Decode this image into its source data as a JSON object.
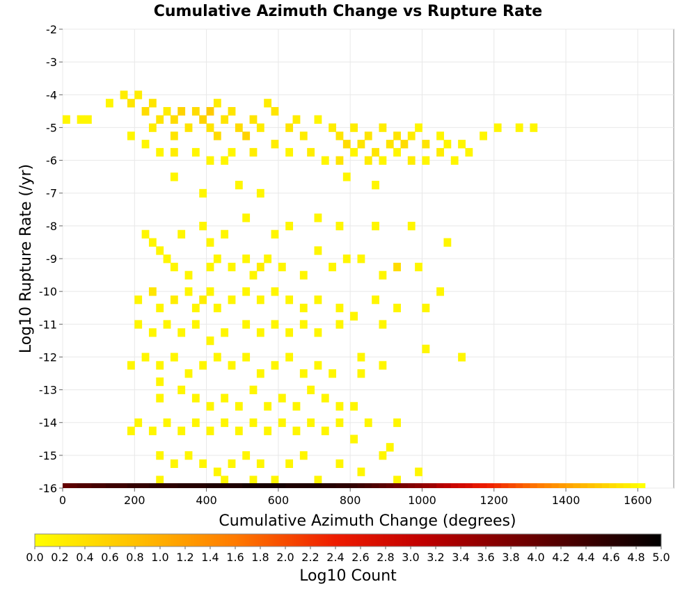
{
  "chart_data": {
    "type": "heatmap",
    "title": "Cumulative Azimuth Change vs Rupture Rate",
    "xlabel": "Cumulative Azimuth Change (degrees)",
    "ylabel": "Log10 Rupture Rate (/yr)",
    "xlim": [
      0,
      1700
    ],
    "ylim": [
      -16,
      -2
    ],
    "xticks": [
      "0",
      "200",
      "400",
      "600",
      "800",
      "1000",
      "1200",
      "1400",
      "1600"
    ],
    "yticks": [
      "-2",
      "-3",
      "-4",
      "-5",
      "-6",
      "-7",
      "-8",
      "-9",
      "-10",
      "-11",
      "-12",
      "-13",
      "-14",
      "-15",
      "-16"
    ],
    "grid": true,
    "bin": {
      "dx": 20,
      "dy": 0.25
    },
    "colorbar": {
      "label": "Log10 Count",
      "range": [
        0.0,
        5.0
      ],
      "ticks": [
        "0.0",
        "0.2",
        "0.4",
        "0.6",
        "0.8",
        "1.0",
        "1.2",
        "1.4",
        "1.6",
        "1.8",
        "2.0",
        "2.2",
        "2.4",
        "2.6",
        "2.8",
        "3.0",
        "3.2",
        "3.4",
        "3.6",
        "3.8",
        "4.0",
        "4.2",
        "4.4",
        "4.6",
        "4.8",
        "5.0"
      ],
      "stops": [
        "#ffff00",
        "#ffc000",
        "#ff7a00",
        "#ee1c00",
        "#c00000",
        "#7a0000",
        "#330000",
        "#000000"
      ]
    },
    "bottom_row": {
      "y": -16,
      "x_start": 0,
      "x_end": 1620,
      "log_counts": [
        3.8,
        3.9,
        4.0,
        4.0,
        4.1,
        4.1,
        4.2,
        4.2,
        4.2,
        4.3,
        4.3,
        4.3,
        4.4,
        4.4,
        4.4,
        4.4,
        4.5,
        4.5,
        4.5,
        4.5,
        4.6,
        4.6,
        4.6,
        4.6,
        4.6,
        4.7,
        4.7,
        4.7,
        4.7,
        4.7,
        4.7,
        4.6,
        4.6,
        4.6,
        4.6,
        4.6,
        4.5,
        4.5,
        4.4,
        4.4,
        4.3,
        4.2,
        4.1,
        4.0,
        3.9,
        3.8,
        3.7,
        3.6,
        3.5,
        3.4,
        3.3,
        3.2,
        3.0,
        2.9,
        2.7,
        2.6,
        2.5,
        2.3,
        2.2,
        2.1,
        2.0,
        1.9,
        1.8,
        1.7,
        1.6,
        1.5,
        1.4,
        1.3,
        1.2,
        1.1,
        1.0,
        0.9,
        0.8,
        0.7,
        0.6,
        0.5,
        0.4,
        0.3,
        0.2,
        0.1,
        0.0
      ]
    },
    "points": [
      [
        0,
        -4.75,
        0.1
      ],
      [
        40,
        -4.75,
        0.1
      ],
      [
        60,
        -4.75,
        0.1
      ],
      [
        120,
        -4.25,
        0.1
      ],
      [
        160,
        -4.0,
        0.2
      ],
      [
        180,
        -4.25,
        0.3
      ],
      [
        200,
        -4.0,
        0.2
      ],
      [
        220,
        -4.5,
        0.4
      ],
      [
        240,
        -4.25,
        0.3
      ],
      [
        240,
        -5.0,
        0.2
      ],
      [
        260,
        -4.75,
        0.3
      ],
      [
        280,
        -4.5,
        0.2
      ],
      [
        300,
        -4.75,
        0.4
      ],
      [
        300,
        -5.25,
        0.3
      ],
      [
        320,
        -4.5,
        0.5
      ],
      [
        340,
        -5.0,
        0.3
      ],
      [
        360,
        -4.5,
        0.4
      ],
      [
        380,
        -4.75,
        0.5
      ],
      [
        400,
        -4.5,
        0.6
      ],
      [
        400,
        -5.0,
        0.3
      ],
      [
        420,
        -4.25,
        0.2
      ],
      [
        420,
        -5.25,
        0.4
      ],
      [
        440,
        -4.75,
        0.3
      ],
      [
        460,
        -4.5,
        0.3
      ],
      [
        480,
        -5.0,
        0.4
      ],
      [
        500,
        -5.25,
        0.5
      ],
      [
        520,
        -4.75,
        0.3
      ],
      [
        540,
        -5.0,
        0.2
      ],
      [
        560,
        -4.25,
        0.2
      ],
      [
        580,
        -4.5,
        0.3
      ],
      [
        620,
        -5.0,
        0.3
      ],
      [
        640,
        -4.75,
        0.2
      ],
      [
        660,
        -5.25,
        0.2
      ],
      [
        700,
        -4.75,
        0.1
      ],
      [
        740,
        -5.0,
        0.2
      ],
      [
        760,
        -5.25,
        0.3
      ],
      [
        780,
        -5.5,
        0.4
      ],
      [
        800,
        -5.0,
        0.2
      ],
      [
        820,
        -5.5,
        0.3
      ],
      [
        840,
        -5.25,
        0.3
      ],
      [
        860,
        -5.75,
        0.3
      ],
      [
        880,
        -5.0,
        0.2
      ],
      [
        900,
        -5.5,
        0.3
      ],
      [
        920,
        -5.25,
        0.3
      ],
      [
        940,
        -5.5,
        0.4
      ],
      [
        960,
        -5.25,
        0.2
      ],
      [
        980,
        -5.0,
        0.1
      ],
      [
        1000,
        -5.5,
        0.3
      ],
      [
        1040,
        -5.25,
        0.1
      ],
      [
        1060,
        -5.5,
        0.1
      ],
      [
        1100,
        -5.5,
        0.1
      ],
      [
        1120,
        -5.75,
        0.1
      ],
      [
        1160,
        -5.25,
        0.1
      ],
      [
        1200,
        -5.0,
        0.1
      ],
      [
        1260,
        -5.0,
        0.1
      ],
      [
        1300,
        -5.0,
        0.1
      ],
      [
        180,
        -5.25,
        0.1
      ],
      [
        220,
        -5.5,
        0.1
      ],
      [
        260,
        -5.75,
        0.1
      ],
      [
        300,
        -5.75,
        0.2
      ],
      [
        360,
        -5.75,
        0.1
      ],
      [
        400,
        -6.0,
        0.1
      ],
      [
        440,
        -6.0,
        0.1
      ],
      [
        460,
        -5.75,
        0.1
      ],
      [
        520,
        -5.75,
        0.2
      ],
      [
        580,
        -5.5,
        0.2
      ],
      [
        620,
        -5.75,
        0.1
      ],
      [
        680,
        -5.75,
        0.2
      ],
      [
        720,
        -6.0,
        0.1
      ],
      [
        760,
        -6.0,
        0.3
      ],
      [
        800,
        -5.75,
        0.1
      ],
      [
        840,
        -6.0,
        0.2
      ],
      [
        880,
        -6.0,
        0.1
      ],
      [
        920,
        -5.75,
        0.1
      ],
      [
        960,
        -6.0,
        0.2
      ],
      [
        1000,
        -6.0,
        0.1
      ],
      [
        1040,
        -5.75,
        0.2
      ],
      [
        1080,
        -6.0,
        0.1
      ],
      [
        300,
        -6.5,
        0.1
      ],
      [
        480,
        -6.75,
        0.1
      ],
      [
        540,
        -7.0,
        0.1
      ],
      [
        780,
        -6.5,
        0.1
      ],
      [
        860,
        -6.75,
        0.1
      ],
      [
        380,
        -7.0,
        0.1
      ],
      [
        380,
        -8.0,
        0.1
      ],
      [
        500,
        -7.75,
        0.1
      ],
      [
        580,
        -8.25,
        0.1
      ],
      [
        620,
        -8.0,
        0.1
      ],
      [
        700,
        -7.75,
        0.1
      ],
      [
        760,
        -8.0,
        0.1
      ],
      [
        860,
        -8.0,
        0.1
      ],
      [
        960,
        -8.0,
        0.1
      ],
      [
        220,
        -8.25,
        0.1
      ],
      [
        320,
        -8.25,
        0.1
      ],
      [
        400,
        -8.5,
        0.1
      ],
      [
        440,
        -8.25,
        0.1
      ],
      [
        240,
        -8.5,
        0.1
      ],
      [
        260,
        -8.75,
        0.1
      ],
      [
        280,
        -9.0,
        0.1
      ],
      [
        300,
        -9.25,
        0.1
      ],
      [
        340,
        -9.5,
        0.1
      ],
      [
        400,
        -9.25,
        0.1
      ],
      [
        420,
        -9.0,
        0.1
      ],
      [
        460,
        -9.25,
        0.1
      ],
      [
        500,
        -9.0,
        0.1
      ],
      [
        520,
        -9.5,
        0.1
      ],
      [
        540,
        -9.25,
        0.2
      ],
      [
        560,
        -9.0,
        0.1
      ],
      [
        600,
        -9.25,
        0.1
      ],
      [
        660,
        -9.5,
        0.1
      ],
      [
        700,
        -8.75,
        0.1
      ],
      [
        740,
        -9.25,
        0.1
      ],
      [
        780,
        -9.0,
        0.1
      ],
      [
        820,
        -9.0,
        0.1
      ],
      [
        880,
        -9.5,
        0.1
      ],
      [
        920,
        -9.25,
        0.4
      ],
      [
        980,
        -9.25,
        0.1
      ],
      [
        1060,
        -8.5,
        0.1
      ],
      [
        200,
        -10.25,
        0.1
      ],
      [
        240,
        -10.0,
        0.3
      ],
      [
        260,
        -10.5,
        0.1
      ],
      [
        300,
        -10.25,
        0.2
      ],
      [
        340,
        -10.0,
        0.1
      ],
      [
        360,
        -10.5,
        0.1
      ],
      [
        380,
        -10.25,
        0.2
      ],
      [
        400,
        -10.0,
        0.1
      ],
      [
        420,
        -10.5,
        0.1
      ],
      [
        460,
        -10.25,
        0.1
      ],
      [
        500,
        -10.0,
        0.1
      ],
      [
        540,
        -10.25,
        0.1
      ],
      [
        580,
        -10.0,
        0.1
      ],
      [
        620,
        -10.25,
        0.1
      ],
      [
        660,
        -10.5,
        0.1
      ],
      [
        700,
        -10.25,
        0.1
      ],
      [
        760,
        -10.5,
        0.1
      ],
      [
        800,
        -10.75,
        0.1
      ],
      [
        860,
        -10.25,
        0.1
      ],
      [
        920,
        -10.5,
        0.1
      ],
      [
        1040,
        -10.0,
        0.1
      ],
      [
        1000,
        -10.5,
        0.1
      ],
      [
        200,
        -11.0,
        0.1
      ],
      [
        240,
        -11.25,
        0.1
      ],
      [
        280,
        -11.0,
        0.1
      ],
      [
        320,
        -11.25,
        0.1
      ],
      [
        360,
        -11.0,
        0.1
      ],
      [
        400,
        -11.5,
        0.1
      ],
      [
        440,
        -11.25,
        0.1
      ],
      [
        500,
        -11.0,
        0.1
      ],
      [
        540,
        -11.25,
        0.1
      ],
      [
        580,
        -11.0,
        0.1
      ],
      [
        620,
        -11.25,
        0.1
      ],
      [
        660,
        -11.0,
        0.1
      ],
      [
        700,
        -11.25,
        0.1
      ],
      [
        760,
        -11.0,
        0.1
      ],
      [
        800,
        -10.75,
        0.1
      ],
      [
        880,
        -11.0,
        0.1
      ],
      [
        1000,
        -11.75,
        0.1
      ],
      [
        1100,
        -12.0,
        0.1
      ],
      [
        180,
        -12.25,
        0.1
      ],
      [
        220,
        -12.0,
        0.1
      ],
      [
        260,
        -12.25,
        0.1
      ],
      [
        300,
        -12.0,
        0.1
      ],
      [
        340,
        -12.5,
        0.1
      ],
      [
        380,
        -12.25,
        0.1
      ],
      [
        420,
        -12.0,
        0.1
      ],
      [
        460,
        -12.25,
        0.1
      ],
      [
        500,
        -12.0,
        0.1
      ],
      [
        540,
        -12.5,
        0.1
      ],
      [
        580,
        -12.25,
        0.1
      ],
      [
        620,
        -12.0,
        0.1
      ],
      [
        660,
        -12.5,
        0.1
      ],
      [
        700,
        -12.25,
        0.1
      ],
      [
        740,
        -12.5,
        0.1
      ],
      [
        820,
        -12.0,
        0.1
      ],
      [
        820,
        -12.5,
        0.1
      ],
      [
        880,
        -12.25,
        0.1
      ],
      [
        260,
        -12.75,
        0.1
      ],
      [
        260,
        -13.25,
        0.1
      ],
      [
        320,
        -13.0,
        0.1
      ],
      [
        360,
        -13.25,
        0.1
      ],
      [
        400,
        -13.5,
        0.1
      ],
      [
        440,
        -13.25,
        0.1
      ],
      [
        480,
        -13.5,
        0.1
      ],
      [
        520,
        -13.0,
        0.1
      ],
      [
        560,
        -13.5,
        0.1
      ],
      [
        600,
        -13.25,
        0.1
      ],
      [
        640,
        -13.5,
        0.1
      ],
      [
        680,
        -13.0,
        0.1
      ],
      [
        720,
        -13.25,
        0.1
      ],
      [
        760,
        -13.5,
        0.1
      ],
      [
        800,
        -13.5,
        0.1
      ],
      [
        200,
        -14.0,
        0.1
      ],
      [
        180,
        -14.25,
        0.1
      ],
      [
        240,
        -14.25,
        0.1
      ],
      [
        280,
        -14.0,
        0.1
      ],
      [
        320,
        -14.25,
        0.1
      ],
      [
        360,
        -14.0,
        0.1
      ],
      [
        400,
        -14.25,
        0.1
      ],
      [
        440,
        -14.0,
        0.1
      ],
      [
        480,
        -14.25,
        0.1
      ],
      [
        520,
        -14.0,
        0.1
      ],
      [
        560,
        -14.25,
        0.1
      ],
      [
        600,
        -14.0,
        0.1
      ],
      [
        640,
        -14.25,
        0.1
      ],
      [
        680,
        -14.0,
        0.1
      ],
      [
        720,
        -14.25,
        0.1
      ],
      [
        760,
        -14.0,
        0.1
      ],
      [
        800,
        -14.5,
        0.1
      ],
      [
        840,
        -14.0,
        0.1
      ],
      [
        900,
        -14.75,
        0.1
      ],
      [
        920,
        -14.0,
        0.1
      ],
      [
        260,
        -15.0,
        0.1
      ],
      [
        300,
        -15.25,
        0.1
      ],
      [
        340,
        -15.0,
        0.1
      ],
      [
        380,
        -15.25,
        0.1
      ],
      [
        420,
        -15.5,
        0.1
      ],
      [
        460,
        -15.25,
        0.1
      ],
      [
        500,
        -15.0,
        0.1
      ],
      [
        540,
        -15.25,
        0.1
      ],
      [
        580,
        -15.75,
        0.1
      ],
      [
        620,
        -15.25,
        0.1
      ],
      [
        660,
        -15.0,
        0.1
      ],
      [
        700,
        -15.75,
        0.1
      ],
      [
        760,
        -15.25,
        0.1
      ],
      [
        820,
        -15.5,
        0.1
      ],
      [
        880,
        -15.0,
        0.1
      ],
      [
        920,
        -15.75,
        0.1
      ],
      [
        980,
        -15.5,
        0.1
      ],
      [
        260,
        -15.75,
        0.1
      ],
      [
        440,
        -15.75,
        0.1
      ],
      [
        520,
        -15.75,
        0.1
      ]
    ]
  }
}
